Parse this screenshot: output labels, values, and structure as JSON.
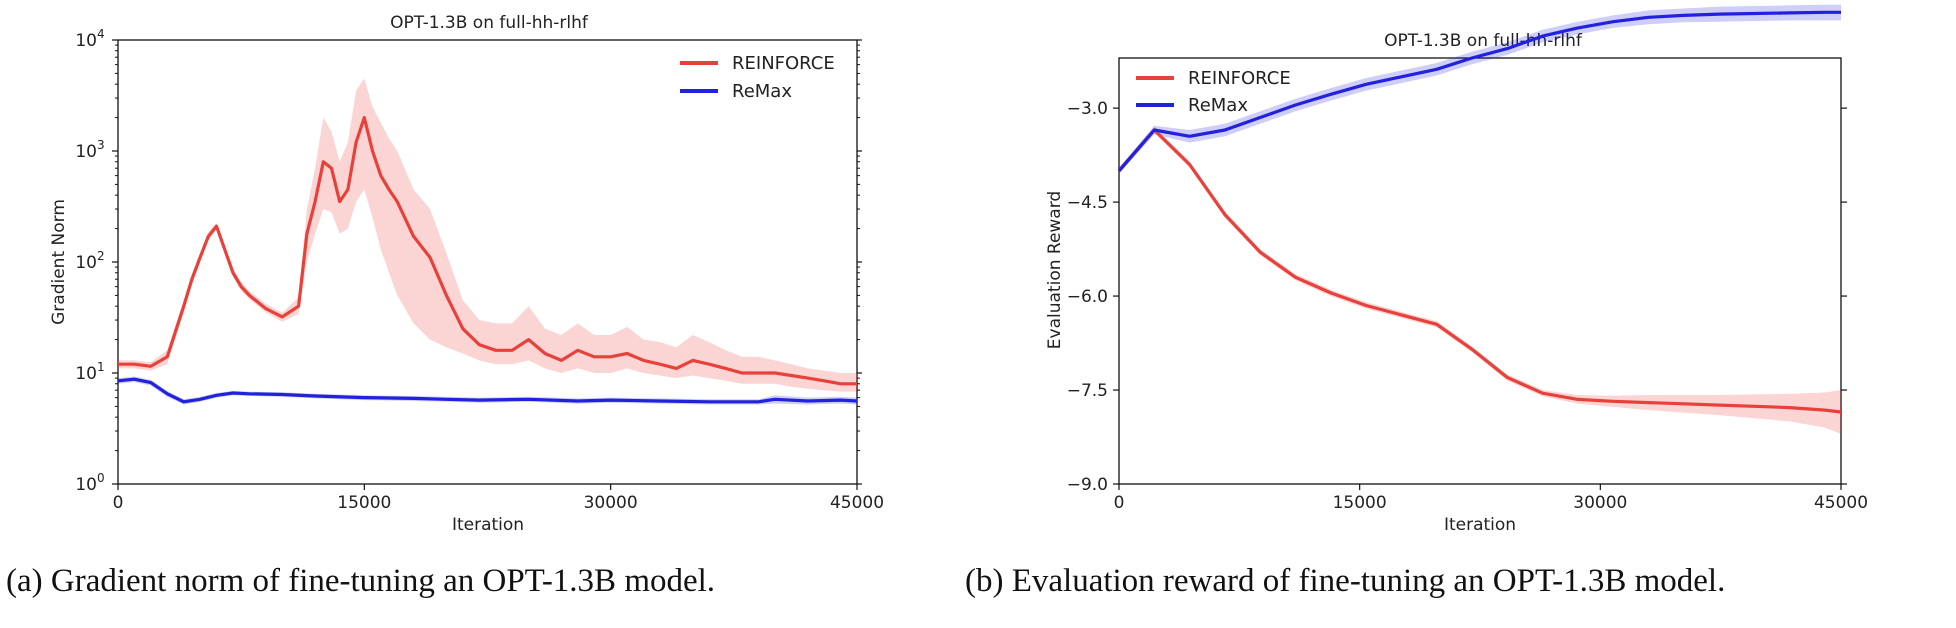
{
  "captions": {
    "a": "(a) Gradient norm of fine-tuning an OPT-1.3B model.",
    "b": "(b) Evaluation reward of fine-tuning an OPT-1.3B model."
  },
  "chart_data": [
    {
      "type": "line",
      "title": "OPT-1.3B on full-hh-rlhf",
      "xlabel": "Iteration",
      "ylabel": "Gradient Norm",
      "yscale": "log",
      "xlim": [
        0,
        45000
      ],
      "ylim": [
        1,
        10000
      ],
      "x_ticks": [
        "0",
        "15000",
        "30000",
        "45000"
      ],
      "y_ticks": [
        "10^0",
        "10^1",
        "10^2",
        "10^3",
        "10^4"
      ],
      "legend_position": "upper-right",
      "series": [
        {
          "name": "REINFORCE",
          "color": "#e8413b",
          "x": [
            0,
            1000,
            2000,
            3000,
            4000,
            4500,
            5000,
            5500,
            6000,
            6500,
            7000,
            7500,
            8000,
            9000,
            10000,
            11000,
            11500,
            12000,
            12500,
            13000,
            13500,
            14000,
            14500,
            15000,
            15500,
            16000,
            16500,
            17000,
            18000,
            19000,
            20000,
            21000,
            22000,
            23000,
            24000,
            25000,
            26000,
            27000,
            28000,
            29000,
            30000,
            31000,
            32000,
            33000,
            34000,
            35000,
            36000,
            37000,
            38000,
            39000,
            40000,
            41000,
            42000,
            43000,
            44000,
            45000
          ],
          "values": [
            12,
            12,
            11.5,
            14,
            40,
            70,
            110,
            170,
            210,
            130,
            80,
            60,
            50,
            38,
            32,
            40,
            180,
            350,
            800,
            700,
            350,
            450,
            1200,
            2000,
            1000,
            600,
            450,
            350,
            170,
            110,
            50,
            25,
            18,
            16,
            16,
            20,
            15,
            13,
            16,
            14,
            14,
            15,
            13,
            12,
            11,
            13,
            12,
            11,
            10,
            10,
            10,
            9.5,
            9,
            8.5,
            8,
            8
          ],
          "band_lower": [
            11,
            11,
            10.5,
            12,
            35,
            62,
            100,
            155,
            195,
            120,
            73,
            55,
            46,
            35,
            29,
            34,
            100,
            180,
            300,
            280,
            180,
            200,
            350,
            450,
            250,
            130,
            80,
            50,
            28,
            20,
            17,
            15,
            13,
            12,
            12,
            13,
            11,
            10,
            11,
            10,
            10,
            11,
            10,
            9.5,
            9,
            9.5,
            9,
            8.5,
            8,
            8,
            8,
            7.5,
            7.2,
            7,
            6.8,
            6.8
          ],
          "band_upper": [
            13,
            13,
            12.5,
            16,
            45,
            78,
            120,
            185,
            225,
            140,
            87,
            66,
            55,
            42,
            35,
            48,
            300,
            700,
            2000,
            1500,
            800,
            1200,
            3500,
            4500,
            2500,
            1800,
            1300,
            1000,
            450,
            300,
            120,
            45,
            30,
            28,
            28,
            40,
            25,
            22,
            28,
            22,
            22,
            26,
            20,
            19,
            17,
            22,
            19,
            16,
            14,
            14,
            13,
            12,
            11,
            10.5,
            10,
            10
          ]
        },
        {
          "name": "ReMax",
          "color": "#2222dd",
          "x": [
            0,
            1000,
            2000,
            3000,
            4000,
            5000,
            6000,
            7000,
            8000,
            10000,
            12000,
            15000,
            18000,
            20000,
            22000,
            25000,
            28000,
            30000,
            33000,
            36000,
            39000,
            40000,
            42000,
            44000,
            45000
          ],
          "values": [
            8.5,
            8.8,
            8.2,
            6.5,
            5.5,
            5.8,
            6.3,
            6.6,
            6.5,
            6.4,
            6.2,
            6.0,
            5.9,
            5.8,
            5.7,
            5.8,
            5.6,
            5.7,
            5.6,
            5.5,
            5.5,
            5.8,
            5.6,
            5.7,
            5.6
          ],
          "band_lower": [
            8.0,
            8.3,
            7.7,
            6.1,
            5.2,
            5.5,
            6.0,
            6.3,
            6.2,
            6.1,
            5.9,
            5.7,
            5.6,
            5.5,
            5.4,
            5.5,
            5.3,
            5.4,
            5.3,
            5.2,
            5.2,
            5.3,
            5.2,
            5.3,
            5.2
          ],
          "band_upper": [
            9.0,
            9.3,
            8.7,
            6.9,
            5.8,
            6.1,
            6.6,
            6.9,
            6.8,
            6.7,
            6.5,
            6.3,
            6.2,
            6.1,
            6.0,
            6.1,
            5.9,
            6.0,
            5.9,
            5.8,
            5.8,
            6.3,
            6.0,
            6.1,
            6.0
          ]
        }
      ]
    },
    {
      "type": "line",
      "title": "OPT-1.3B on full-hh-rlhf",
      "xlabel": "Iteration",
      "ylabel": "Evaluation Reward",
      "xlim": [
        0,
        45000
      ],
      "ylim": [
        -9.0,
        -2.2
      ],
      "x_ticks": [
        0,
        15000,
        30000,
        45000
      ],
      "y_ticks": [
        -3.0,
        -4.5,
        -6.0,
        -7.5,
        -9.0
      ],
      "legend_position": "upper-left",
      "series": [
        {
          "name": "REINFORCE",
          "color": "#e8413b",
          "x": [
            0,
            2200,
            4400,
            6600,
            8800,
            11000,
            13200,
            15400,
            17600,
            19800,
            22000,
            24200,
            26400,
            28600,
            30800,
            33000,
            35200,
            37400,
            39600,
            41800,
            44000,
            45000
          ],
          "values": [
            -4.0,
            -3.35,
            -3.9,
            -4.7,
            -5.3,
            -5.7,
            -5.95,
            -6.15,
            -6.3,
            -6.45,
            -6.85,
            -7.3,
            -7.55,
            -7.65,
            -7.68,
            -7.7,
            -7.72,
            -7.74,
            -7.76,
            -7.78,
            -7.82,
            -7.85
          ],
          "band_lower": [
            -4.05,
            -3.4,
            -3.95,
            -4.75,
            -5.35,
            -5.75,
            -6.0,
            -6.2,
            -6.35,
            -6.5,
            -6.9,
            -7.35,
            -7.6,
            -7.72,
            -7.77,
            -7.82,
            -7.86,
            -7.9,
            -7.95,
            -8.0,
            -8.1,
            -8.2
          ],
          "band_upper": [
            -3.95,
            -3.3,
            -3.85,
            -4.65,
            -5.25,
            -5.65,
            -5.9,
            -6.1,
            -6.25,
            -6.4,
            -6.8,
            -7.25,
            -7.5,
            -7.58,
            -7.59,
            -7.58,
            -7.58,
            -7.58,
            -7.57,
            -7.56,
            -7.54,
            -7.5
          ]
        },
        {
          "name": "ReMax",
          "color": "#2222dd",
          "x": [
            0,
            2200,
            4400,
            6600,
            8800,
            11000,
            13200,
            15400,
            17600,
            19800,
            22000,
            24200,
            26400,
            28600,
            30800,
            33000,
            35200,
            37400,
            39600,
            41800,
            44000,
            45000
          ],
          "values": [
            -4.0,
            -3.35,
            -3.45,
            -3.35,
            -3.15,
            -2.95,
            -2.78,
            -2.62,
            -2.5,
            -2.38,
            -2.2,
            -2.05,
            -1.85,
            -1.72,
            -1.62,
            -1.55,
            -1.52,
            -1.5,
            -1.49,
            -1.48,
            -1.47,
            -1.47
          ],
          "band_lower": [
            -4.05,
            -3.42,
            -3.55,
            -3.45,
            -3.25,
            -3.05,
            -2.88,
            -2.72,
            -2.6,
            -2.48,
            -2.3,
            -2.15,
            -1.95,
            -1.82,
            -1.72,
            -1.66,
            -1.63,
            -1.62,
            -1.61,
            -1.6,
            -1.6,
            -1.6
          ],
          "band_upper": [
            -3.95,
            -3.28,
            -3.35,
            -3.25,
            -3.05,
            -2.85,
            -2.68,
            -2.52,
            -2.4,
            -2.28,
            -2.1,
            -1.95,
            -1.75,
            -1.62,
            -1.52,
            -1.44,
            -1.41,
            -1.38,
            -1.37,
            -1.36,
            -1.35,
            -1.35
          ]
        }
      ]
    }
  ]
}
